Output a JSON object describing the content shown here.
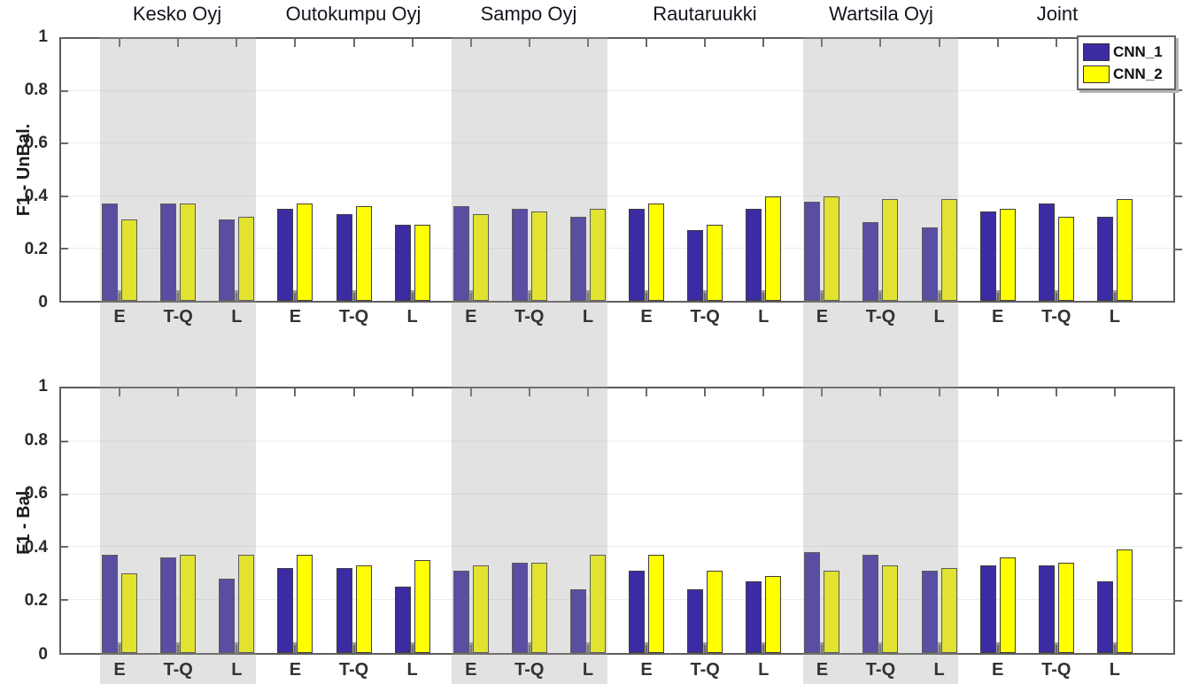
{
  "chart_data": {
    "type": "bar",
    "group_titles": [
      "Kesko Oyj",
      "Outokumpu Oyj",
      "Sampo Oyj",
      "Rautaruukki",
      "Wartsila Oyj",
      "Joint"
    ],
    "categories_per_group": [
      "E",
      "T-Q",
      "L"
    ],
    "xtick_labels": [
      "E",
      "T-Q",
      "L",
      "E",
      "T-Q",
      "L",
      "E",
      "T-Q",
      "L",
      "E",
      "T-Q",
      "L",
      "E",
      "T-Q",
      "L",
      "E",
      "T-Q",
      "L"
    ],
    "ytick_labels": [
      "0",
      "0.2",
      "0.4",
      "0.6",
      "0.8",
      "1"
    ],
    "yticks": [
      0,
      0.2,
      0.4,
      0.6,
      0.8,
      1
    ],
    "ylim": [
      0,
      1
    ],
    "grid": "horizontal",
    "shaded_groups": [
      0,
      2,
      4
    ],
    "shaded_group_names": [
      "Kesko Oyj",
      "Sampo Oyj",
      "Wartsila Oyj"
    ],
    "colors": {
      "cnn1_fill": "#3B2CA3",
      "cnn2_fill": "#FFFF00",
      "bar_edge": "#3F3F3F",
      "shadow_notch": "#9E9E9E",
      "band_overlay": "rgba(158,158,158,0.30)",
      "axis": "#5E5E5E",
      "gridline": "#ECECEC"
    },
    "legend": {
      "position": "top-right",
      "entries": [
        {
          "label": "CNN_1",
          "color": "#3B2CA3"
        },
        {
          "label": "CNN_2",
          "color": "#FFFF00"
        }
      ]
    },
    "subplots": [
      {
        "ylabel": "F1 - UnBal.",
        "series": [
          {
            "name": "CNN_1",
            "values": [
              0.37,
              0.37,
              0.31,
              0.35,
              0.33,
              0.29,
              0.36,
              0.35,
              0.32,
              0.35,
              0.27,
              0.35,
              0.38,
              0.3,
              0.28,
              0.34,
              0.37,
              0.32
            ]
          },
          {
            "name": "CNN_2",
            "values": [
              0.31,
              0.37,
              0.32,
              0.37,
              0.36,
              0.29,
              0.33,
              0.34,
              0.35,
              0.37,
              0.29,
              0.4,
              0.4,
              0.39,
              0.39,
              0.35,
              0.32,
              0.39
            ]
          }
        ]
      },
      {
        "ylabel": "F1 - Bal.",
        "series": [
          {
            "name": "CNN_1",
            "values": [
              0.37,
              0.36,
              0.28,
              0.32,
              0.32,
              0.25,
              0.31,
              0.34,
              0.24,
              0.31,
              0.24,
              0.27,
              0.38,
              0.37,
              0.31,
              0.33,
              0.33,
              0.27
            ]
          },
          {
            "name": "CNN_2",
            "values": [
              0.3,
              0.37,
              0.37,
              0.37,
              0.33,
              0.35,
              0.33,
              0.34,
              0.37,
              0.37,
              0.31,
              0.29,
              0.31,
              0.33,
              0.32,
              0.36,
              0.34,
              0.39
            ]
          }
        ]
      }
    ]
  }
}
